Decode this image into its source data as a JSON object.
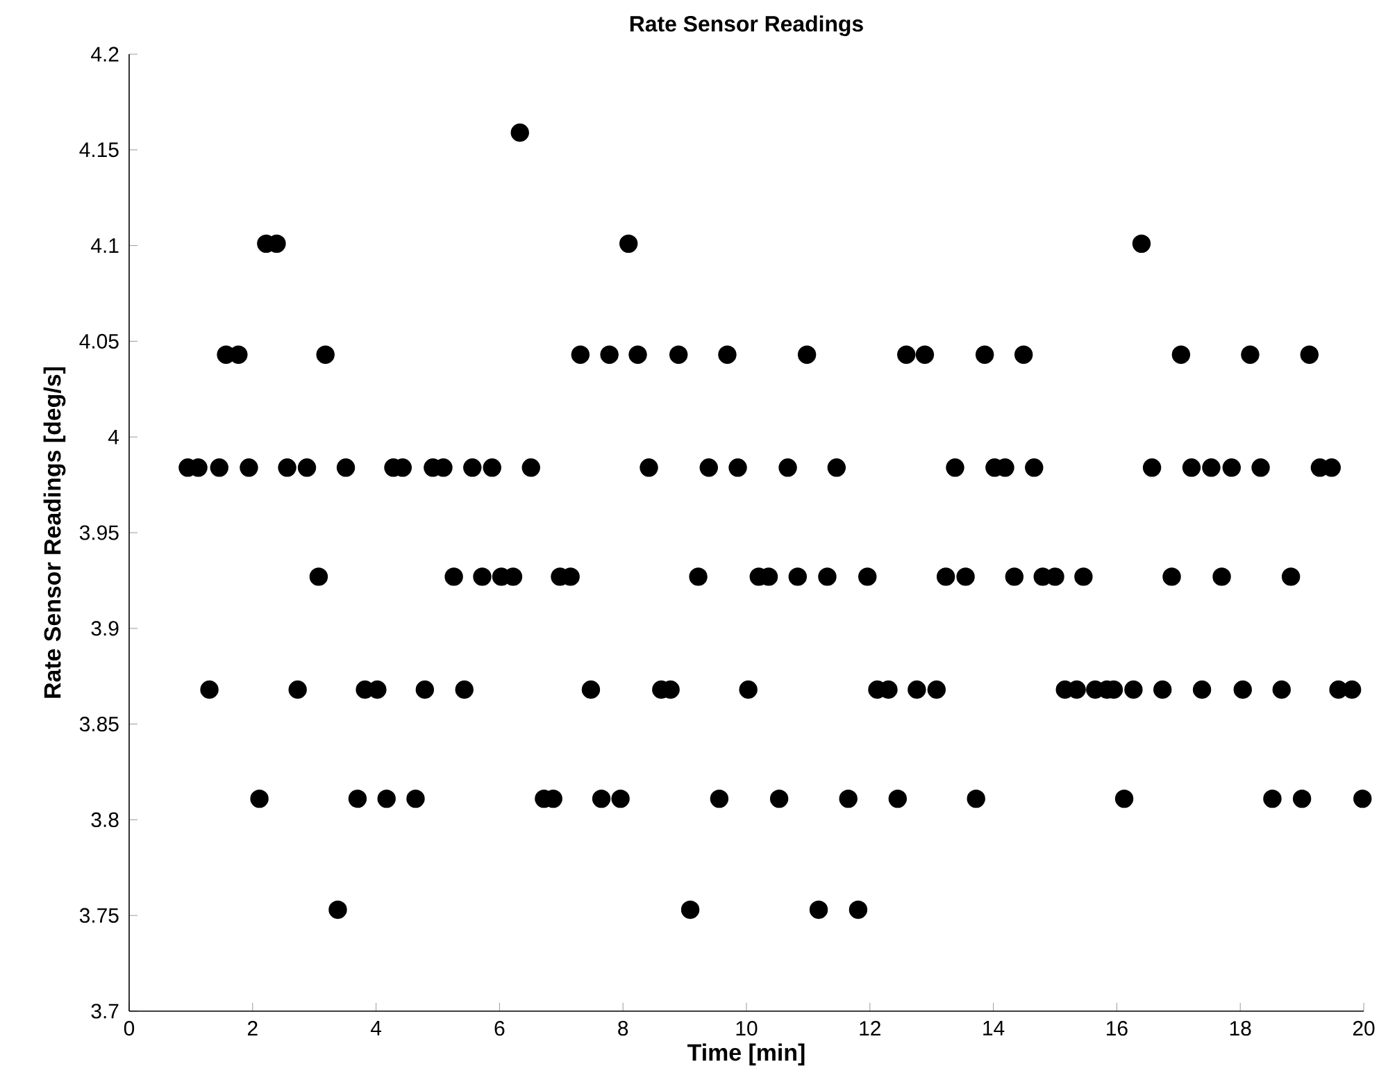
{
  "chart_data": {
    "type": "scatter",
    "title": "Rate Sensor Readings",
    "xlabel": "Time [min]",
    "ylabel": "Rate Sensor Readings [deg/s]",
    "x": [
      6.33,
      2.22,
      2.39,
      8.09,
      16.4,
      1.57,
      1.77,
      3.18,
      7.31,
      7.78,
      8.24,
      8.9,
      9.69,
      10.98,
      12.59,
      12.89,
      13.86,
      14.49,
      17.04,
      18.16,
      19.12,
      0.95,
      1.12,
      1.46,
      1.94,
      2.56,
      2.88,
      3.51,
      4.28,
      4.43,
      4.92,
      5.09,
      5.56,
      5.88,
      6.51,
      8.42,
      9.39,
      9.86,
      10.67,
      11.46,
      13.38,
      14.02,
      14.19,
      14.66,
      16.57,
      17.21,
      17.53,
      17.86,
      18.33,
      19.29,
      19.48,
      3.07,
      5.26,
      5.72,
      6.03,
      6.22,
      6.98,
      7.15,
      9.22,
      10.2,
      10.36,
      10.83,
      11.31,
      11.96,
      13.23,
      13.55,
      14.34,
      14.8,
      15.0,
      15.46,
      16.89,
      17.7,
      18.82,
      1.3,
      2.73,
      3.82,
      4.02,
      4.79,
      5.43,
      7.48,
      8.62,
      8.77,
      10.03,
      12.12,
      12.3,
      12.76,
      13.08,
      15.16,
      15.35,
      15.65,
      15.84,
      15.95,
      16.27,
      16.74,
      17.38,
      18.04,
      18.67,
      19.59,
      19.81,
      2.11,
      3.7,
      4.17,
      4.64,
      6.72,
      6.87,
      7.65,
      7.96,
      9.56,
      10.53,
      11.65,
      12.45,
      13.72,
      16.12,
      18.52,
      19.0,
      19.98,
      3.38,
      9.09,
      11.17,
      11.81
    ],
    "values": [
      4.159,
      4.101,
      4.101,
      4.101,
      4.101,
      4.043,
      4.043,
      4.043,
      4.043,
      4.043,
      4.043,
      4.043,
      4.043,
      4.043,
      4.043,
      4.043,
      4.043,
      4.043,
      4.043,
      4.043,
      4.043,
      3.984,
      3.984,
      3.984,
      3.984,
      3.984,
      3.984,
      3.984,
      3.984,
      3.984,
      3.984,
      3.984,
      3.984,
      3.984,
      3.984,
      3.984,
      3.984,
      3.984,
      3.984,
      3.984,
      3.984,
      3.984,
      3.984,
      3.984,
      3.984,
      3.984,
      3.984,
      3.984,
      3.984,
      3.984,
      3.984,
      3.927,
      3.927,
      3.927,
      3.927,
      3.927,
      3.927,
      3.927,
      3.927,
      3.927,
      3.927,
      3.927,
      3.927,
      3.927,
      3.927,
      3.927,
      3.927,
      3.927,
      3.927,
      3.927,
      3.927,
      3.927,
      3.927,
      3.868,
      3.868,
      3.868,
      3.868,
      3.868,
      3.868,
      3.868,
      3.868,
      3.868,
      3.868,
      3.868,
      3.868,
      3.868,
      3.868,
      3.868,
      3.868,
      3.868,
      3.868,
      3.868,
      3.868,
      3.868,
      3.868,
      3.868,
      3.868,
      3.868,
      3.868,
      3.811,
      3.811,
      3.811,
      3.811,
      3.811,
      3.811,
      3.811,
      3.811,
      3.811,
      3.811,
      3.811,
      3.811,
      3.811,
      3.811,
      3.811,
      3.811,
      3.811,
      3.753,
      3.753,
      3.753,
      3.753
    ],
    "color": "#000000",
    "marker": "circle",
    "xlim": [
      0,
      20
    ],
    "ylim": [
      3.7,
      4.2
    ],
    "xticks": [
      0,
      2,
      4,
      6,
      8,
      10,
      12,
      14,
      16,
      18,
      20
    ],
    "yticks": [
      3.7,
      3.75,
      3.8,
      3.85,
      3.9,
      3.95,
      4,
      4.05,
      4.1,
      4.15,
      4.2
    ]
  }
}
